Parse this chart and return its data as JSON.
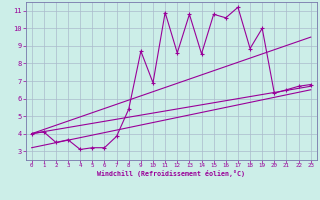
{
  "xlabel": "Windchill (Refroidissement éolien,°C)",
  "bg_color": "#cceee8",
  "plot_bg_color": "#cceee8",
  "line_color": "#990099",
  "grid_color": "#aabbcc",
  "spine_color": "#7777aa",
  "tick_color": "#990099",
  "xlim": [
    -0.5,
    23.5
  ],
  "ylim": [
    2.5,
    11.5
  ],
  "xticks": [
    0,
    1,
    2,
    3,
    4,
    5,
    6,
    7,
    8,
    9,
    10,
    11,
    12,
    13,
    14,
    15,
    16,
    17,
    18,
    19,
    20,
    21,
    22,
    23
  ],
  "yticks": [
    3,
    4,
    5,
    6,
    7,
    8,
    9,
    10,
    11
  ],
  "main_x": [
    0,
    1,
    2,
    3,
    4,
    5,
    6,
    7,
    8,
    9,
    10,
    11,
    12,
    13,
    14,
    15,
    16,
    17,
    18,
    19,
    20,
    21,
    22,
    23
  ],
  "main_y": [
    4.0,
    4.1,
    3.5,
    3.65,
    3.1,
    3.2,
    3.2,
    3.85,
    5.4,
    8.7,
    6.9,
    10.9,
    8.6,
    10.8,
    8.55,
    10.8,
    10.6,
    11.2,
    8.85,
    10.0,
    6.3,
    6.5,
    6.7,
    6.8
  ],
  "line1_x": [
    0,
    23
  ],
  "line1_y": [
    4.0,
    9.5
  ],
  "line2_x": [
    0,
    23
  ],
  "line2_y": [
    4.0,
    6.7
  ],
  "line3_x": [
    0,
    23
  ],
  "line3_y": [
    3.2,
    6.5
  ]
}
